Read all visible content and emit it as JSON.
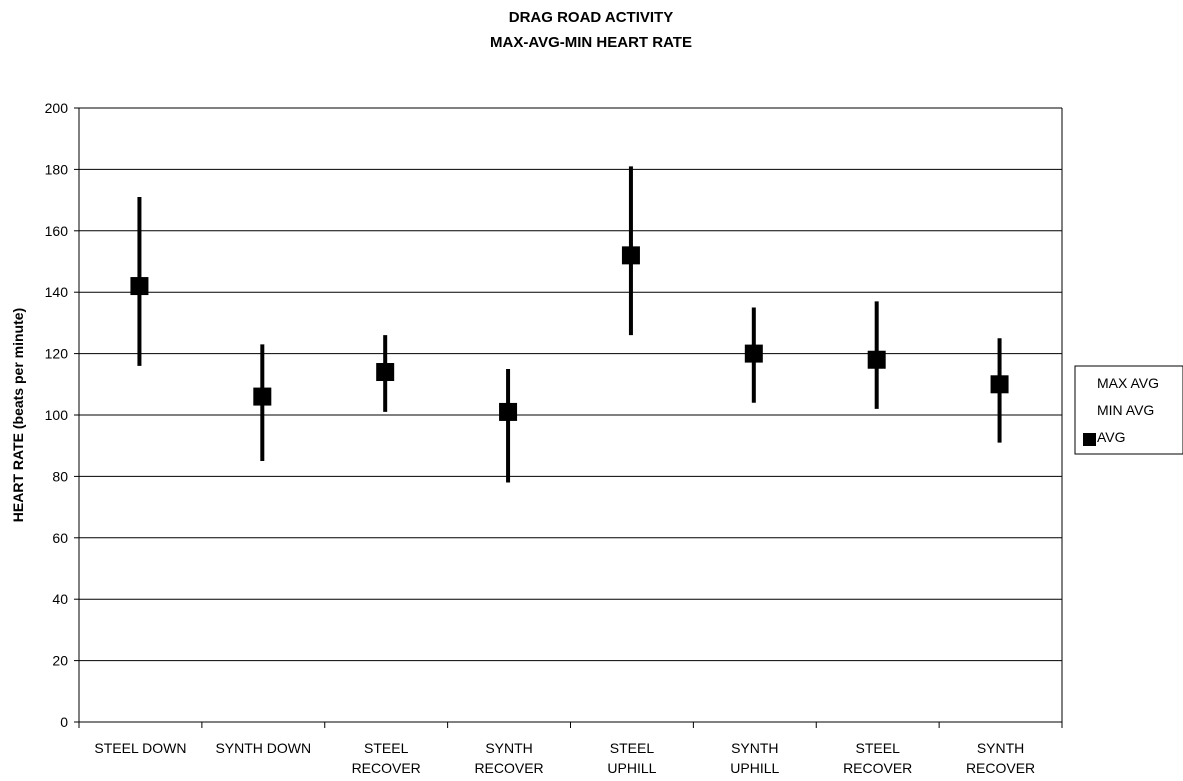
{
  "chart_data": {
    "type": "stock-hilo",
    "title": [
      "DRAG ROAD ACTIVITY",
      "MAX-AVG-MIN HEART RATE"
    ],
    "xlabel": "",
    "ylabel": "HEART RATE (beats per minute)",
    "ylim": [
      0,
      200
    ],
    "yticks": [
      0,
      20,
      40,
      60,
      80,
      100,
      120,
      140,
      160,
      180,
      200
    ],
    "grid": true,
    "legend_position": "right",
    "categories": [
      [
        "STEEL DOWN"
      ],
      [
        "SYNTH DOWN"
      ],
      [
        "STEEL",
        "RECOVER"
      ],
      [
        "SYNTH",
        "RECOVER"
      ],
      [
        "STEEL",
        "UPHILL"
      ],
      [
        "SYNTH",
        "UPHILL"
      ],
      [
        "STEEL",
        "RECOVER"
      ],
      [
        "SYNTH",
        "RECOVER"
      ]
    ],
    "series": [
      {
        "name": "MAX AVG",
        "values": [
          171,
          123,
          126,
          115,
          181,
          135,
          137,
          125
        ]
      },
      {
        "name": "MIN AVG",
        "values": [
          116,
          85,
          101,
          78,
          126,
          104,
          102,
          91
        ]
      },
      {
        "name": "AVG",
        "values": [
          142,
          106,
          114,
          101,
          152,
          120,
          118,
          110
        ]
      }
    ],
    "colors": {
      "marks": "#000000",
      "grid": "#000000",
      "background": "#ffffff"
    }
  }
}
